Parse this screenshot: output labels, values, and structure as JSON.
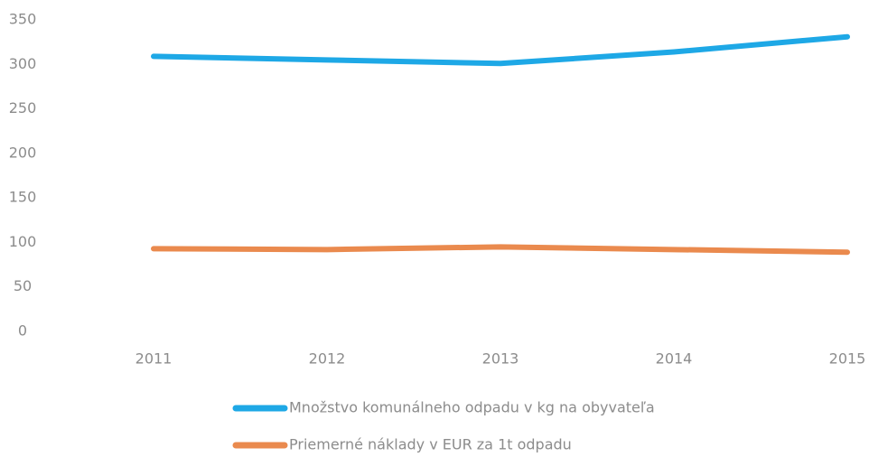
{
  "chart_data": {
    "type": "line",
    "categories": [
      "2011",
      "2012",
      "2013",
      "2014",
      "2015"
    ],
    "series": [
      {
        "name": "Množstvo komunálneho odpadu v kg na obyvateľa",
        "color": "#1ea8e6",
        "values": [
          309,
          305,
          301,
          314,
          331
        ]
      },
      {
        "name": "Priemerné náklady v EUR za 1t odpadu",
        "color": "#ea8a4e",
        "values": [
          93,
          92,
          95,
          92,
          89
        ]
      }
    ],
    "ylim": [
      0,
      350
    ],
    "yticks": [
      0,
      50,
      100,
      150,
      200,
      250,
      300,
      350
    ],
    "grid": false
  }
}
